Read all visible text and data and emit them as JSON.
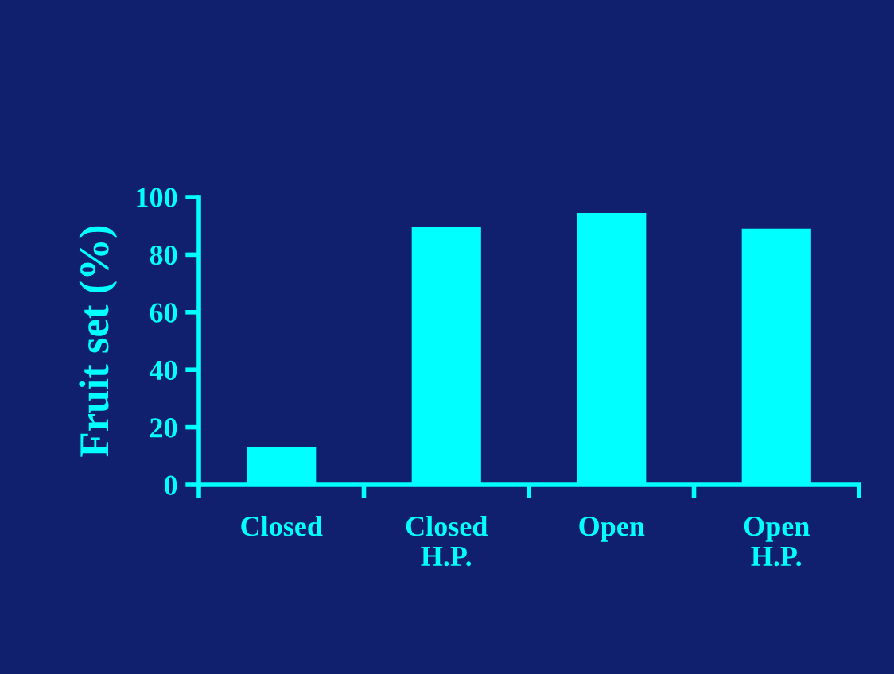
{
  "chart_data": {
    "type": "bar",
    "ylabel": "Fruit set (%)",
    "categories": [
      "Closed",
      "Closed\nH.P.",
      "Open",
      "Open\nH.P."
    ],
    "values": [
      13,
      89.5,
      94.5,
      89
    ],
    "color": "#00ffff",
    "ylim": [
      0,
      100
    ],
    "yticks": [
      0,
      20,
      40,
      60,
      80,
      100
    ],
    "grid": false
  }
}
